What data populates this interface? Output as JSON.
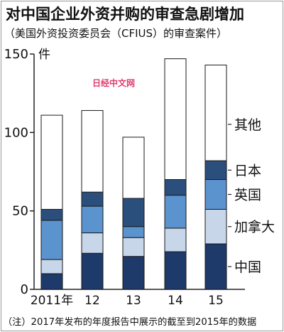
{
  "title": "对中国企业外资并购的审查急剧增加",
  "subtitle": "（美国外资投资委员会（CFIUS）的审查案件）",
  "note": "（注）2017年发布的年度报告中展示的截至到2015年的数据",
  "watermark": "日经中文网",
  "colors": {
    "中国": "#1d3a6b",
    "加拿大": "#c7d6e8",
    "英国": "#5b93cf",
    "日本": "#2b4f7c",
    "其他": "#ffffff",
    "edge": "#1a1a1a"
  },
  "chart_data": {
    "type": "bar",
    "stacked": true,
    "categories": [
      "2011年",
      "12",
      "13",
      "14",
      "15"
    ],
    "series": [
      {
        "name": "中国",
        "values": [
          10,
          23,
          21,
          24,
          29
        ]
      },
      {
        "name": "加拿大",
        "values": [
          9,
          13,
          12,
          15,
          22
        ]
      },
      {
        "name": "英国",
        "values": [
          25,
          17,
          7,
          21,
          19
        ]
      },
      {
        "name": "日本",
        "values": [
          7,
          9,
          18,
          10,
          12
        ]
      },
      {
        "name": "其他",
        "values": [
          60,
          52,
          39,
          77,
          61
        ]
      }
    ],
    "ylim": [
      0,
      150
    ],
    "yticks": [
      0,
      50,
      100,
      150
    ],
    "yunit": "件",
    "legend": "right, labels beside last bar"
  }
}
